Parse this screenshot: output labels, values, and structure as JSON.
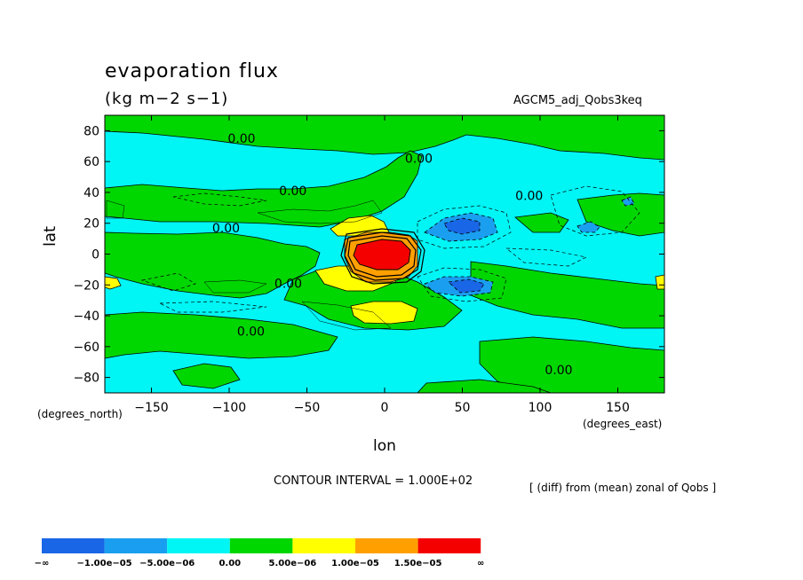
{
  "title": "evaporation flux",
  "units": "(kg m−2 s−1)",
  "run_name": "AGCM5_adj_Qobs3keq",
  "contour_interval": "CONTOUR INTERVAL = 1.000E+02",
  "description": "[ (diff) from (mean) zonal of Qobs ]",
  "xlabel": "lon",
  "ylabel": "lat",
  "x_units": "(degrees_east)",
  "y_units": "(degrees_north)",
  "chart_data": {
    "type": "heatmap",
    "xlim": [
      -180,
      180
    ],
    "ylim": [
      -90,
      90
    ],
    "x_ticks": [
      -150,
      -100,
      -50,
      0,
      50,
      100,
      150
    ],
    "y_ticks": [
      -80,
      -60,
      -40,
      -20,
      0,
      20,
      40,
      60,
      80
    ],
    "x_tick_labels": [
      "−150",
      "−100",
      "−50",
      "0",
      "50",
      "100",
      "150"
    ],
    "y_tick_labels": [
      "−80",
      "−60",
      "−40",
      "−20",
      "0",
      "20",
      "40",
      "60",
      "80"
    ],
    "contour_labels": [
      {
        "text": "0.00",
        "lon": -92,
        "lat": 75
      },
      {
        "text": "0.00",
        "lon": 22,
        "lat": 62
      },
      {
        "text": "0.00",
        "lon": -59,
        "lat": 41
      },
      {
        "text": "0.00",
        "lon": 93,
        "lat": 38
      },
      {
        "text": "0.00",
        "lon": -102,
        "lat": 17
      },
      {
        "text": "0.00",
        "lon": -62,
        "lat": -19
      },
      {
        "text": "0.00",
        "lon": -86,
        "lat": -50
      },
      {
        "text": "0.00",
        "lon": 112,
        "lat": -75
      }
    ],
    "colorbar": {
      "colors": [
        "#1966e6",
        "#1a9ff0",
        "#00f5f5",
        "#00d700",
        "#ffff00",
        "#ffa000",
        "#f50000"
      ],
      "labels": [
        "−∞",
        "−1.00e−05",
        "−5.00e−06",
        "0.00",
        "5.00e−06",
        "1.00e−05",
        "1.50e−05",
        "∞"
      ]
    }
  }
}
